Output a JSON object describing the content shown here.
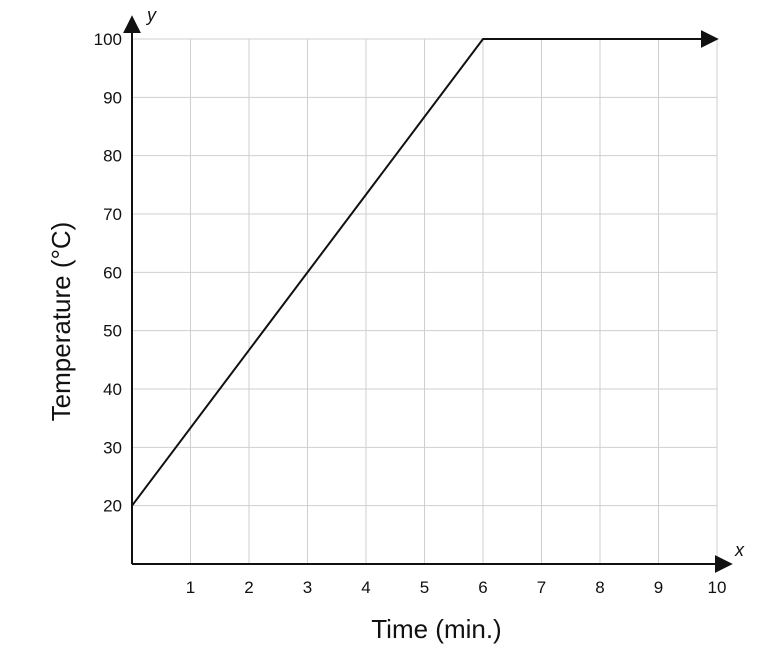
{
  "chart_data": {
    "type": "line",
    "title": "",
    "xlabel": "Time (min.)",
    "ylabel": "Temperature (°C)",
    "x_axis_letter": "x",
    "y_axis_letter": "y",
    "xlim": [
      0,
      10
    ],
    "ylim": [
      10,
      100
    ],
    "x_ticks": [
      1,
      2,
      3,
      4,
      5,
      6,
      7,
      8,
      9,
      10
    ],
    "y_ticks": [
      20,
      30,
      40,
      50,
      60,
      70,
      80,
      90,
      100
    ],
    "grid": true,
    "series": [
      {
        "points": [
          {
            "x": 0,
            "y": 20
          },
          {
            "x": 6,
            "y": 100
          },
          {
            "x": 10,
            "y": 100
          }
        ],
        "arrow_at_end": true
      }
    ],
    "colors": {
      "line": "#111111",
      "grid": "#cfcfcf",
      "axis": "#111111"
    }
  }
}
